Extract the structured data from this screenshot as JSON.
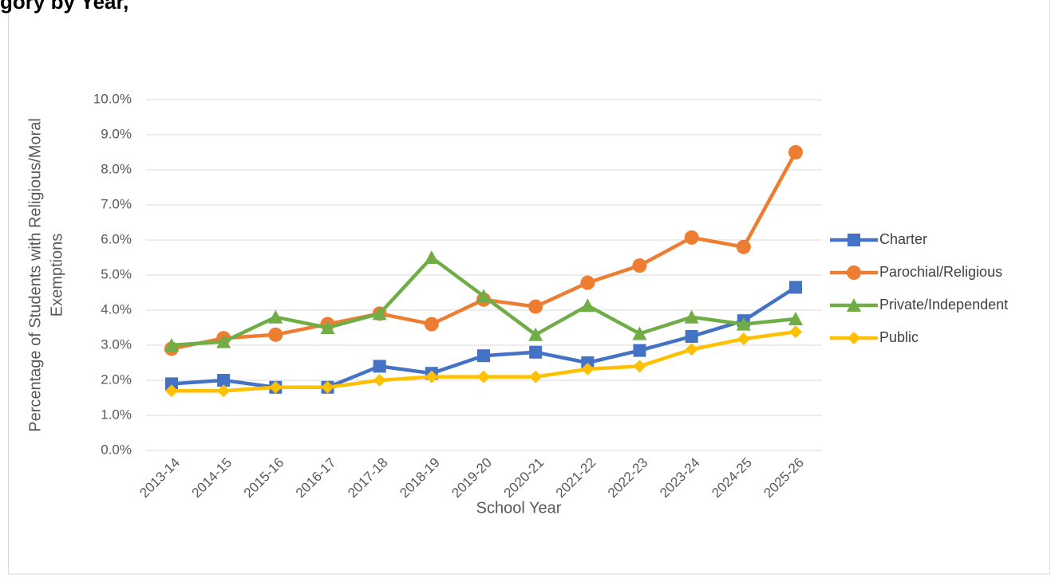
{
  "chart_data": {
    "type": "line",
    "title": "gory by Year,",
    "x_label": "School Year",
    "y_label": [
      "Percentage of Students with Religious/Moral",
      "Exemptions"
    ],
    "categories": [
      "2013-14",
      "2014-15",
      "2015-16",
      "2016-17",
      "2017-18",
      "2018-19",
      "2019-20",
      "2020-21",
      "2021-22",
      "2022-23",
      "2023-24",
      "2024-25",
      "2025-26"
    ],
    "series": [
      {
        "name": "Charter",
        "color": "#4472c4",
        "marker": "square",
        "values": [
          1.9,
          2.0,
          1.8,
          1.8,
          2.4,
          2.2,
          2.7,
          2.8,
          2.5,
          2.85,
          3.25,
          3.7,
          4.65
        ]
      },
      {
        "name": "Parochial/Religious",
        "color": "#ed7d31",
        "marker": "circle",
        "values": [
          2.9,
          3.2,
          3.3,
          3.6,
          3.9,
          3.6,
          4.3,
          4.1,
          4.78,
          5.27,
          6.07,
          5.8,
          8.5
        ]
      },
      {
        "name": "Private/Independent",
        "color": "#70ad47",
        "marker": "triangle",
        "values": [
          3.0,
          3.1,
          3.8,
          3.5,
          3.9,
          5.5,
          4.4,
          3.3,
          4.13,
          3.33,
          3.8,
          3.6,
          3.75
        ]
      },
      {
        "name": "Public",
        "color": "#ffc000",
        "marker": "diamond",
        "values": [
          1.7,
          1.7,
          1.8,
          1.8,
          2.0,
          2.1,
          2.1,
          2.1,
          2.32,
          2.4,
          2.88,
          3.18,
          3.38
        ]
      }
    ],
    "ylim": [
      0,
      10
    ],
    "yticks": [
      {
        "value": 0,
        "label": "0.0%"
      },
      {
        "value": 1,
        "label": "1.0%"
      },
      {
        "value": 2,
        "label": "2.0%"
      },
      {
        "value": 3,
        "label": "3.0%"
      },
      {
        "value": 4,
        "label": "4.0%"
      },
      {
        "value": 5,
        "label": "5.0%"
      },
      {
        "value": 6,
        "label": "6.0%"
      },
      {
        "value": 7,
        "label": "7.0%"
      },
      {
        "value": 8,
        "label": "8.0%"
      },
      {
        "value": 9,
        "label": "9.0%"
      },
      {
        "value": 10,
        "label": "10.0%"
      }
    ],
    "grid": true,
    "legend": "right"
  }
}
